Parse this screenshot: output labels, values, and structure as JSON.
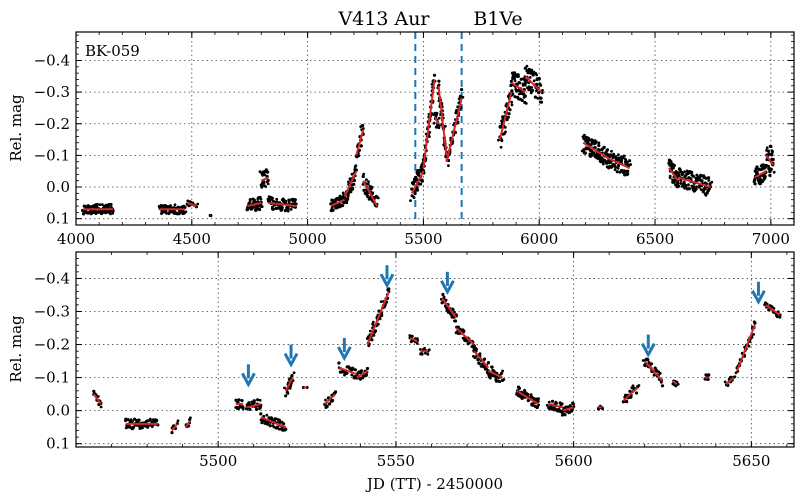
{
  "figure": {
    "title_star": "V413 Aur",
    "title_type": "B1Ve",
    "object_label": "BK-059",
    "colors": {
      "points": "#000000",
      "fit": "#d62728",
      "markers": "#1f77b4"
    }
  },
  "chart_data": [
    {
      "type": "scatter",
      "panel": "top",
      "title": "V413 Aur     B1Ve",
      "ylabel": "Rel. mag",
      "xlabel": "",
      "xlim": [
        4000,
        7100
      ],
      "ylim": [
        0.12,
        -0.49
      ],
      "y_inverted": true,
      "xticks": [
        4000,
        4500,
        5000,
        5500,
        6000,
        6500,
        7000
      ],
      "yticks": [
        0.1,
        0.0,
        -0.1,
        -0.2,
        -0.3,
        -0.4
      ],
      "ytick_labels": [
        "0.1",
        "0.0",
        "−0.1",
        "−0.2",
        "−0.3",
        "−0.4"
      ],
      "grid": true,
      "annotation": "BK-059",
      "vlines": [
        5465,
        5665
      ],
      "segments": [
        {
          "x0": 4030,
          "x1": 4160,
          "y0": 0.07,
          "y1": 0.07,
          "amp": 0.015,
          "n": 45
        },
        {
          "x0": 4360,
          "x1": 4470,
          "y0": 0.07,
          "y1": 0.07,
          "amp": 0.015,
          "n": 40
        },
        {
          "x0": 4480,
          "x1": 4520,
          "y0": 0.05,
          "y1": 0.06,
          "amp": 0.01,
          "n": 6
        },
        {
          "x0": 4580,
          "x1": 4582,
          "y0": 0.09,
          "y1": 0.09,
          "amp": 0.0,
          "n": 2
        },
        {
          "x0": 4740,
          "x1": 4800,
          "y0": 0.06,
          "y1": 0.05,
          "amp": 0.02,
          "n": 25
        },
        {
          "x0": 4800,
          "x1": 4830,
          "y0": -0.02,
          "y1": -0.03,
          "amp": 0.03,
          "n": 12
        },
        {
          "x0": 4830,
          "x1": 4950,
          "y0": 0.05,
          "y1": 0.06,
          "amp": 0.02,
          "n": 40
        },
        {
          "x0": 5100,
          "x1": 5160,
          "y0": 0.06,
          "y1": 0.04,
          "amp": 0.02,
          "n": 25
        },
        {
          "x0": 5160,
          "x1": 5210,
          "y0": 0.03,
          "y1": -0.05,
          "amp": 0.03,
          "n": 20
        },
        {
          "x0": 5210,
          "x1": 5240,
          "y0": -0.1,
          "y1": -0.18,
          "amp": 0.03,
          "n": 12
        },
        {
          "x0": 5240,
          "x1": 5300,
          "y0": -0.02,
          "y1": 0.06,
          "amp": 0.03,
          "n": 22
        },
        {
          "x0": 5450,
          "x1": 5500,
          "y0": 0.02,
          "y1": -0.05,
          "amp": 0.03,
          "n": 22
        },
        {
          "x0": 5500,
          "x1": 5548,
          "y0": -0.06,
          "y1": -0.34,
          "amp": 0.03,
          "n": 25
        },
        {
          "x0": 5550,
          "x1": 5565,
          "y0": -0.22,
          "y1": -0.2,
          "amp": 0.02,
          "n": 8
        },
        {
          "x0": 5565,
          "x1": 5600,
          "y0": -0.32,
          "y1": -0.1,
          "amp": 0.03,
          "n": 22
        },
        {
          "x0": 5600,
          "x1": 5665,
          "y0": -0.08,
          "y1": -0.28,
          "amp": 0.03,
          "n": 25
        },
        {
          "x0": 5830,
          "x1": 5880,
          "y0": -0.15,
          "y1": -0.3,
          "amp": 0.04,
          "n": 25
        },
        {
          "x0": 5880,
          "x1": 5940,
          "y0": -0.33,
          "y1": -0.3,
          "amp": 0.04,
          "n": 28
        },
        {
          "x0": 5940,
          "x1": 6010,
          "y0": -0.35,
          "y1": -0.3,
          "amp": 0.04,
          "n": 30
        },
        {
          "x0": 6190,
          "x1": 6300,
          "y0": -0.14,
          "y1": -0.09,
          "amp": 0.03,
          "n": 50
        },
        {
          "x0": 6300,
          "x1": 6390,
          "y0": -0.09,
          "y1": -0.06,
          "amp": 0.03,
          "n": 35
        },
        {
          "x0": 6560,
          "x1": 6600,
          "y0": -0.06,
          "y1": -0.02,
          "amp": 0.03,
          "n": 20
        },
        {
          "x0": 6600,
          "x1": 6740,
          "y0": -0.03,
          "y1": 0.0,
          "amp": 0.03,
          "n": 50
        },
        {
          "x0": 6930,
          "x1": 6980,
          "y0": -0.03,
          "y1": -0.05,
          "amp": 0.03,
          "n": 25
        },
        {
          "x0": 6980,
          "x1": 7010,
          "y0": -0.1,
          "y1": -0.07,
          "amp": 0.05,
          "n": 20
        }
      ]
    },
    {
      "type": "scatter",
      "panel": "bottom",
      "title": "",
      "ylabel": "Rel. mag",
      "xlabel": "JD (TT) - 2450000",
      "xlim": [
        5460,
        5662
      ],
      "ylim": [
        0.11,
        -0.48
      ],
      "y_inverted": true,
      "xticks": [
        5500,
        5550,
        5600,
        5650
      ],
      "yticks": [
        0.1,
        0.0,
        -0.1,
        -0.2,
        -0.3,
        -0.4
      ],
      "ytick_labels": [
        "0.1",
        "0.0",
        "−0.1",
        "−0.2",
        "−0.3",
        "−0.4"
      ],
      "grid": true,
      "arrows": [
        {
          "x": 5508.5,
          "y": -0.14
        },
        {
          "x": 5520.5,
          "y": -0.2
        },
        {
          "x": 5535.5,
          "y": -0.22
        },
        {
          "x": 5547.5,
          "y": -0.44
        },
        {
          "x": 5564.5,
          "y": -0.42
        },
        {
          "x": 5621,
          "y": -0.23
        },
        {
          "x": 5652,
          "y": -0.39
        }
      ],
      "segments": [
        {
          "x0": 5465,
          "x1": 5467,
          "y0": -0.05,
          "y1": -0.02,
          "amp": 0.01,
          "n": 8
        },
        {
          "x0": 5474,
          "x1": 5483,
          "y0": 0.04,
          "y1": 0.04,
          "amp": 0.015,
          "n": 30
        },
        {
          "x0": 5487,
          "x1": 5488.5,
          "y0": 0.06,
          "y1": 0.04,
          "amp": 0.01,
          "n": 4
        },
        {
          "x0": 5491,
          "x1": 5492,
          "y0": 0.05,
          "y1": 0.03,
          "amp": 0.01,
          "n": 4
        },
        {
          "x0": 5505,
          "x1": 5507,
          "y0": -0.02,
          "y1": -0.02,
          "amp": 0.015,
          "n": 8
        },
        {
          "x0": 5508,
          "x1": 5512,
          "y0": -0.01,
          "y1": -0.02,
          "amp": 0.015,
          "n": 14
        },
        {
          "x0": 5512,
          "x1": 5519,
          "y0": 0.02,
          "y1": 0.05,
          "amp": 0.015,
          "n": 25
        },
        {
          "x0": 5519,
          "x1": 5521,
          "y0": -0.06,
          "y1": -0.1,
          "amp": 0.015,
          "n": 10
        },
        {
          "x0": 5524,
          "x1": 5525,
          "y0": -0.07,
          "y1": -0.07,
          "amp": 0.0,
          "n": 2
        },
        {
          "x0": 5530,
          "x1": 5533,
          "y0": -0.02,
          "y1": -0.05,
          "amp": 0.015,
          "n": 10
        },
        {
          "x0": 5534,
          "x1": 5539,
          "y0": -0.13,
          "y1": -0.11,
          "amp": 0.015,
          "n": 14
        },
        {
          "x0": 5539,
          "x1": 5542,
          "y0": -0.1,
          "y1": -0.12,
          "amp": 0.015,
          "n": 10
        },
        {
          "x0": 5542,
          "x1": 5548,
          "y0": -0.2,
          "y1": -0.36,
          "amp": 0.02,
          "n": 25
        },
        {
          "x0": 5554,
          "x1": 5556,
          "y0": -0.22,
          "y1": -0.21,
          "amp": 0.01,
          "n": 8
        },
        {
          "x0": 5557,
          "x1": 5559,
          "y0": -0.18,
          "y1": -0.18,
          "amp": 0.01,
          "n": 6
        },
        {
          "x0": 5563,
          "x1": 5567,
          "y0": -0.34,
          "y1": -0.28,
          "amp": 0.015,
          "n": 18
        },
        {
          "x0": 5567,
          "x1": 5572,
          "y0": -0.25,
          "y1": -0.2,
          "amp": 0.015,
          "n": 18
        },
        {
          "x0": 5572,
          "x1": 5576,
          "y0": -0.18,
          "y1": -0.13,
          "amp": 0.02,
          "n": 16
        },
        {
          "x0": 5576,
          "x1": 5580,
          "y0": -0.12,
          "y1": -0.1,
          "amp": 0.02,
          "n": 16
        },
        {
          "x0": 5584,
          "x1": 5590,
          "y0": -0.06,
          "y1": -0.02,
          "amp": 0.015,
          "n": 25
        },
        {
          "x0": 5593,
          "x1": 5597,
          "y0": -0.02,
          "y1": -0.01,
          "amp": 0.015,
          "n": 16
        },
        {
          "x0": 5597,
          "x1": 5600,
          "y0": 0.0,
          "y1": -0.01,
          "amp": 0.015,
          "n": 12
        },
        {
          "x0": 5607,
          "x1": 5608,
          "y0": -0.01,
          "y1": -0.01,
          "amp": 0.005,
          "n": 3
        },
        {
          "x0": 5614,
          "x1": 5618,
          "y0": -0.03,
          "y1": -0.07,
          "amp": 0.015,
          "n": 14
        },
        {
          "x0": 5620,
          "x1": 5625,
          "y0": -0.15,
          "y1": -0.09,
          "amp": 0.015,
          "n": 18
        },
        {
          "x0": 5628,
          "x1": 5629,
          "y0": -0.09,
          "y1": -0.08,
          "amp": 0.01,
          "n": 5
        },
        {
          "x0": 5637,
          "x1": 5638,
          "y0": -0.1,
          "y1": -0.1,
          "amp": 0.01,
          "n": 5
        },
        {
          "x0": 5643,
          "x1": 5645,
          "y0": -0.08,
          "y1": -0.1,
          "amp": 0.01,
          "n": 6
        },
        {
          "x0": 5646,
          "x1": 5651,
          "y0": -0.12,
          "y1": -0.26,
          "amp": 0.015,
          "n": 18
        },
        {
          "x0": 5654,
          "x1": 5658,
          "y0": -0.32,
          "y1": -0.29,
          "amp": 0.01,
          "n": 10
        }
      ]
    }
  ]
}
